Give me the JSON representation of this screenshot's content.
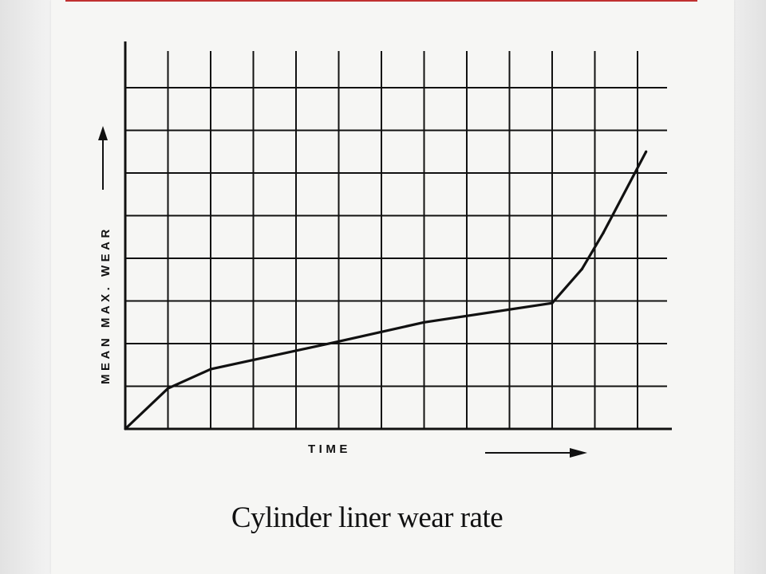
{
  "caption": "Cylinder liner wear rate",
  "chart_data": {
    "type": "line",
    "title": "Cylinder liner wear rate",
    "xlabel": "TIME",
    "ylabel": "MEAN MAX. WEAR",
    "xlim": [
      0,
      13
    ],
    "ylim": [
      0,
      9
    ],
    "grid": true,
    "series": [
      {
        "values": [
          {
            "x": 0,
            "y": 0
          },
          {
            "x": 1,
            "y": 0.95
          },
          {
            "x": 2,
            "y": 1.4
          },
          {
            "x": 5,
            "y": 2.05
          },
          {
            "x": 7,
            "y": 2.5
          },
          {
            "x": 10,
            "y": 2.95
          },
          {
            "x": 10.7,
            "y": 3.75
          },
          {
            "x": 11.2,
            "y": 4.6
          },
          {
            "x": 12.2,
            "y": 6.5
          }
        ]
      }
    ]
  },
  "colors": {
    "ink": "#111111",
    "paper": "#f6f6f4",
    "accent_bar": "#c03030"
  }
}
